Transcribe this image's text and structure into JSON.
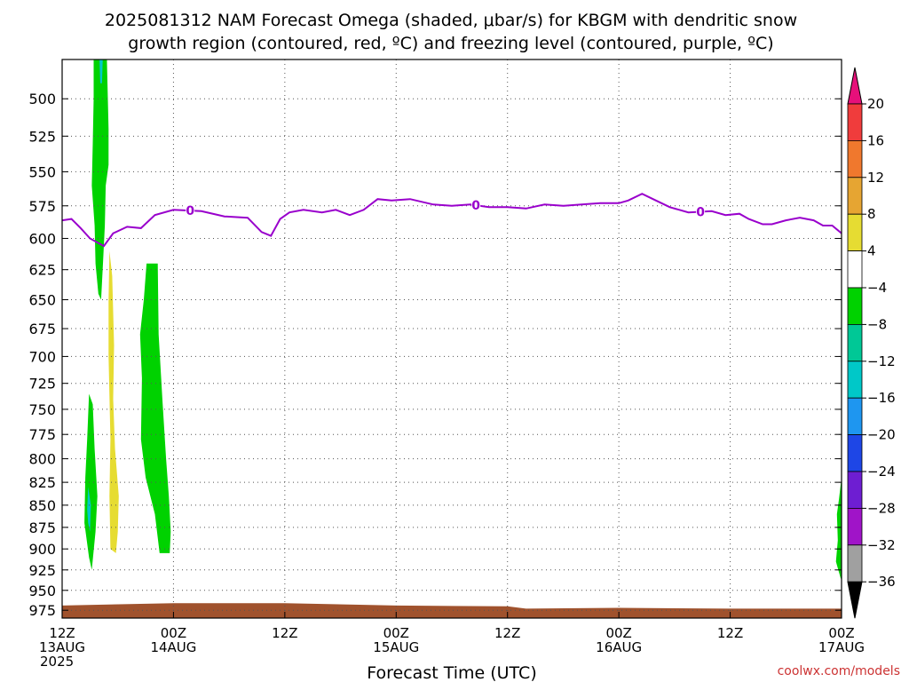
{
  "chart_data": {
    "type": "heatmap",
    "title": {
      "line1": "2025081312 NAM Forecast Omega (shaded, μbar/s) for KBGM with dendritic snow",
      "line2": "growth region (contoured, red, ºC) and freezing level (contoured, purple, ºC)"
    },
    "xlabel": "Forecast Time (UTC)",
    "ylabel": "",
    "credit": "coolwx.com/models",
    "y_axis": {
      "unit": "hPa",
      "inverted": true,
      "range": [
        475,
        985
      ],
      "ticks": [
        500,
        525,
        550,
        575,
        600,
        625,
        650,
        675,
        700,
        725,
        750,
        775,
        800,
        825,
        850,
        875,
        900,
        925,
        950,
        975
      ]
    },
    "x_axis": {
      "unit": "forecast hour",
      "range": [
        0,
        84
      ],
      "ticks": [
        {
          "hour": 0,
          "lines": [
            "12Z",
            "13AUG",
            "2025"
          ]
        },
        {
          "hour": 12,
          "lines": [
            "00Z",
            "14AUG"
          ]
        },
        {
          "hour": 24,
          "lines": [
            "12Z"
          ]
        },
        {
          "hour": 36,
          "lines": [
            "00Z",
            "15AUG"
          ]
        },
        {
          "hour": 48,
          "lines": [
            "12Z"
          ]
        },
        {
          "hour": 60,
          "lines": [
            "00Z",
            "16AUG"
          ]
        },
        {
          "hour": 72,
          "lines": [
            "12Z"
          ]
        },
        {
          "hour": 84,
          "lines": [
            "00Z",
            "17AUG"
          ]
        }
      ]
    },
    "grid": true,
    "colorbar": {
      "unit": "μbar/s",
      "placement": "right",
      "top_arrow_color": "#e6107a",
      "bottom_arrow_color": "#000000",
      "segments": [
        {
          "range": [
            20,
            null
          ],
          "color": "#e6107a"
        },
        {
          "range": [
            16,
            20
          ],
          "color": "#f03c3c"
        },
        {
          "range": [
            12,
            16
          ],
          "color": "#f0782d"
        },
        {
          "range": [
            8,
            12
          ],
          "color": "#e6a532"
        },
        {
          "range": [
            4,
            8
          ],
          "color": "#e6dc32"
        },
        {
          "range": [
            -4,
            4
          ],
          "color": "#ffffff"
        },
        {
          "range": [
            -8,
            -4
          ],
          "color": "#00d200"
        },
        {
          "range": [
            -12,
            -8
          ],
          "color": "#00c896"
        },
        {
          "range": [
            -16,
            -12
          ],
          "color": "#00c8c8"
        },
        {
          "range": [
            -20,
            -16
          ],
          "color": "#1e96f0"
        },
        {
          "range": [
            -24,
            -20
          ],
          "color": "#1e46e6"
        },
        {
          "range": [
            -28,
            -24
          ],
          "color": "#6e1ed2"
        },
        {
          "range": [
            -32,
            -28
          ],
          "color": "#a014c8"
        },
        {
          "range": [
            -36,
            -32
          ],
          "color": "#a0a0a0"
        },
        {
          "range": [
            null,
            -36
          ],
          "color": "#000000"
        }
      ],
      "labels": [
        "20",
        "16",
        "12",
        "8",
        "4",
        "−4",
        "−8",
        "−12",
        "−16",
        "−20",
        "−24",
        "−28",
        "−32",
        "−36"
      ]
    },
    "shaded_regions": [
      {
        "name": "upper-column-ascent",
        "omega_class": "-8 to -4",
        "color": "#00d200",
        "points": [
          [
            3.4,
            470
          ],
          [
            4.8,
            470
          ],
          [
            5.0,
            520
          ],
          [
            5.0,
            545
          ],
          [
            4.7,
            560
          ],
          [
            4.6,
            590
          ],
          [
            4.4,
            620
          ],
          [
            4.2,
            650
          ],
          [
            3.9,
            645
          ],
          [
            3.6,
            620
          ],
          [
            3.5,
            590
          ],
          [
            3.2,
            560
          ],
          [
            3.3,
            530
          ],
          [
            3.4,
            500
          ]
        ]
      },
      {
        "name": "upper-column-core",
        "omega_class": "-12 to -8",
        "color": "#00c8c8",
        "points": [
          [
            4.0,
            470
          ],
          [
            4.4,
            470
          ],
          [
            4.3,
            490
          ],
          [
            4.1,
            490
          ]
        ]
      },
      {
        "name": "low-level-ascent-1",
        "omega_class": "-8 to -4",
        "color": "#00d200",
        "points": [
          [
            2.9,
            735
          ],
          [
            3.3,
            745
          ],
          [
            3.5,
            790
          ],
          [
            3.8,
            840
          ],
          [
            3.6,
            880
          ],
          [
            3.2,
            925
          ],
          [
            2.9,
            910
          ],
          [
            2.4,
            870
          ],
          [
            2.5,
            820
          ],
          [
            2.7,
            780
          ]
        ]
      },
      {
        "name": "low-level-core-1",
        "omega_class": "-12 to -8",
        "color": "#00c8c8",
        "points": [
          [
            2.8,
            830
          ],
          [
            3.1,
            850
          ],
          [
            3.0,
            880
          ],
          [
            2.8,
            870
          ],
          [
            2.7,
            855
          ]
        ]
      },
      {
        "name": "weak-descent",
        "omega_class": "4 to 8",
        "color": "#e6dc32",
        "points": [
          [
            5.1,
            610
          ],
          [
            5.4,
            630
          ],
          [
            5.6,
            690
          ],
          [
            5.5,
            740
          ],
          [
            5.7,
            790
          ],
          [
            6.1,
            840
          ],
          [
            6.0,
            880
          ],
          [
            5.8,
            905
          ],
          [
            5.2,
            900
          ],
          [
            5.1,
            840
          ],
          [
            5.2,
            780
          ],
          [
            5.0,
            700
          ],
          [
            5.0,
            650
          ]
        ]
      },
      {
        "name": "mid-level-ascent",
        "omega_class": "-8 to -4",
        "color": "#00d200",
        "points": [
          [
            9.1,
            620
          ],
          [
            10.3,
            620
          ],
          [
            10.4,
            680
          ],
          [
            10.8,
            740
          ],
          [
            11.2,
            800
          ],
          [
            11.5,
            840
          ],
          [
            11.7,
            880
          ],
          [
            11.6,
            905
          ],
          [
            10.5,
            905
          ],
          [
            10.0,
            860
          ],
          [
            9.0,
            820
          ],
          [
            8.5,
            780
          ],
          [
            8.6,
            720
          ],
          [
            8.4,
            680
          ],
          [
            8.8,
            650
          ]
        ]
      },
      {
        "name": "final-hour-ascent",
        "omega_class": "-8 to -4",
        "color": "#00d200",
        "points": [
          [
            84.0,
            820
          ],
          [
            84.2,
            820
          ],
          [
            84.2,
            940
          ],
          [
            83.9,
            935
          ],
          [
            83.4,
            915
          ],
          [
            83.6,
            890
          ],
          [
            83.5,
            860
          ],
          [
            83.7,
            845
          ]
        ]
      },
      {
        "name": "terrain",
        "omega_class": "below ground",
        "color": "#a0522d",
        "points": [
          [
            0,
            969
          ],
          [
            12,
            966
          ],
          [
            24,
            966
          ],
          [
            36,
            969
          ],
          [
            48,
            970
          ],
          [
            50,
            973
          ],
          [
            60,
            972
          ],
          [
            72,
            973
          ],
          [
            84,
            973
          ],
          [
            84,
            990
          ],
          [
            0,
            990
          ]
        ]
      }
    ],
    "freezing_level": {
      "label": "0",
      "color": "#9900cc",
      "label_hours": [
        13.8,
        44.6,
        68.8
      ],
      "points": [
        [
          0,
          586
        ],
        [
          1.0,
          585
        ],
        [
          2.0,
          592
        ],
        [
          3.0,
          600
        ],
        [
          4.5,
          606
        ],
        [
          5.5,
          596
        ],
        [
          7,
          591
        ],
        [
          8.5,
          592
        ],
        [
          10,
          582
        ],
        [
          12,
          578
        ],
        [
          15,
          579
        ],
        [
          17.5,
          583
        ],
        [
          20,
          584
        ],
        [
          21.5,
          595
        ],
        [
          22.5,
          598
        ],
        [
          23.5,
          585
        ],
        [
          24.5,
          580
        ],
        [
          26,
          578
        ],
        [
          28,
          580
        ],
        [
          29.5,
          578
        ],
        [
          31,
          582
        ],
        [
          32.5,
          578
        ],
        [
          34,
          570
        ],
        [
          35.5,
          571
        ],
        [
          37.5,
          570
        ],
        [
          40,
          574
        ],
        [
          42,
          575
        ],
        [
          44,
          574
        ],
        [
          46,
          576
        ],
        [
          48,
          576
        ],
        [
          50,
          577
        ],
        [
          52,
          574
        ],
        [
          54,
          575
        ],
        [
          56,
          574
        ],
        [
          58,
          573
        ],
        [
          60,
          573
        ],
        [
          61,
          571
        ],
        [
          62.5,
          566
        ],
        [
          64,
          571
        ],
        [
          65.5,
          576
        ],
        [
          67.5,
          580
        ],
        [
          70,
          579
        ],
        [
          71.5,
          582
        ],
        [
          73,
          581
        ],
        [
          74,
          585
        ],
        [
          75.5,
          589
        ],
        [
          76.5,
          589
        ],
        [
          78,
          586
        ],
        [
          79.5,
          584
        ],
        [
          81,
          586
        ],
        [
          82,
          590
        ],
        [
          83,
          590
        ],
        [
          84,
          596
        ]
      ]
    }
  }
}
